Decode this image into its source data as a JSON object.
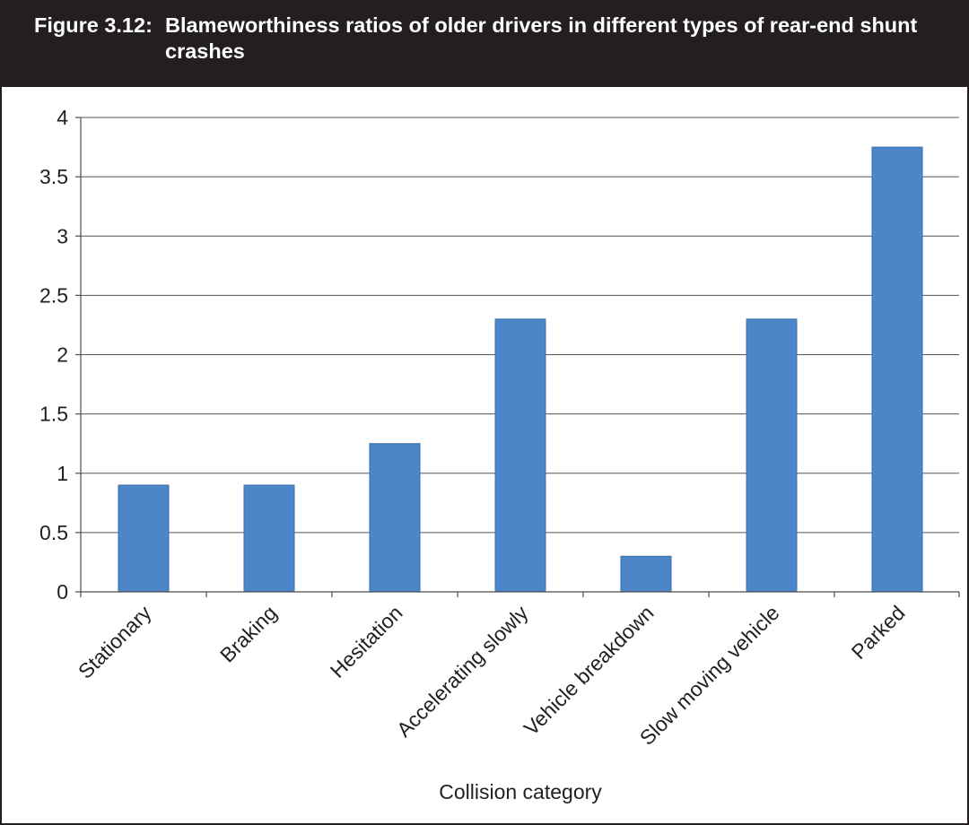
{
  "figure": {
    "number": "Figure 3.12:",
    "title": "Blameworthiness ratios of older drivers in different types of rear-end shunt crashes"
  },
  "chart_data": {
    "type": "bar",
    "categories": [
      "Stationary",
      "Braking",
      "Hesitation",
      "Accelerating slowly",
      "Vehicle breakdown",
      "Slow moving vehicle",
      "Parked"
    ],
    "values": [
      0.9,
      0.9,
      1.25,
      2.3,
      0.3,
      2.3,
      3.75
    ],
    "xlabel": "Collision category",
    "ylabel": "",
    "ylim": [
      0,
      4
    ],
    "yticks": [
      "0",
      "0.5",
      "1",
      "1.5",
      "2",
      "2.5",
      "3",
      "3.5",
      "4"
    ],
    "grid": true,
    "bar_color": "#4a86c8",
    "legend": "none"
  }
}
